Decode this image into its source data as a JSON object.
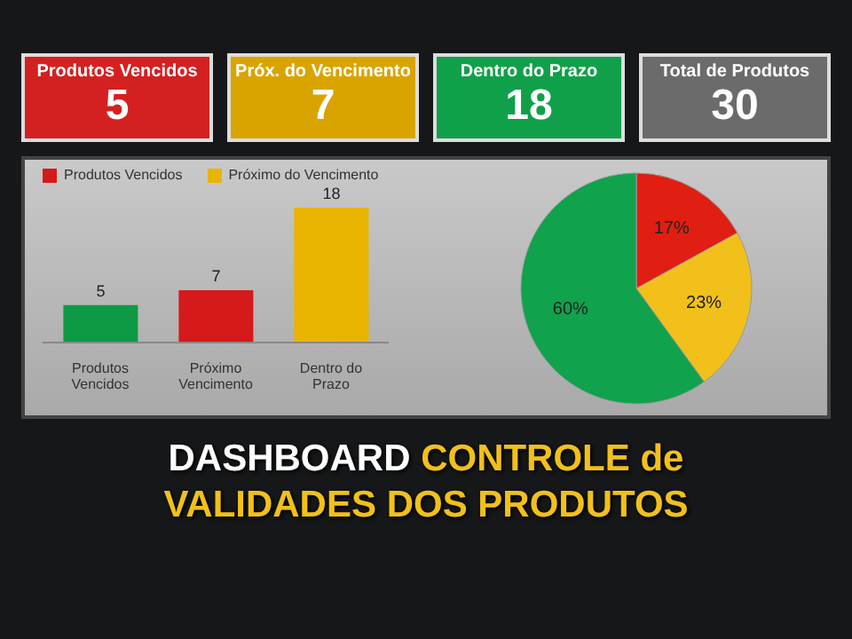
{
  "chart_data": [
    {
      "type": "other",
      "categories": [
        "Produtos Vencidos",
        "Próx. do Vencimento",
        "Dentro do Prazo",
        "Total de Produtos"
      ],
      "values": [
        5,
        7,
        18,
        30
      ],
      "colors": [
        "#d42020",
        "#d9a400",
        "#11a04a",
        "#6b6b6b"
      ],
      "data_labels": true
    },
    {
      "type": "bar",
      "categories": [
        "Produtos Vencidos",
        "Próximo Vencimento",
        "Dentro do Prazo"
      ],
      "stacked": true,
      "legend": "top left",
      "data_labels": true,
      "series": [
        {
          "color": "#0e9a45",
          "values": [
            5,
            null,
            null
          ]
        },
        {
          "name": "Produtos Vencidos",
          "color": "#d41a1a",
          "values": [
            null,
            7,
            null
          ]
        },
        {
          "name": "Próximo do Vencimento",
          "color": "#e8b400",
          "values": [
            null,
            null,
            18
          ]
        }
      ]
    },
    {
      "type": "pie",
      "categories": [
        null,
        null,
        null
      ],
      "values": [
        17,
        23,
        60
      ],
      "value_labels": [
        "17%",
        "23%",
        "60%"
      ],
      "colors": [
        "#e01e12",
        "#f2c01a",
        "#10a24c"
      ],
      "data_labels": true
    },
    {
      "type": "other",
      "title": "DASHBOARD CONTROLE de VALIDADES DOS PRODUTOS"
    }
  ]
}
